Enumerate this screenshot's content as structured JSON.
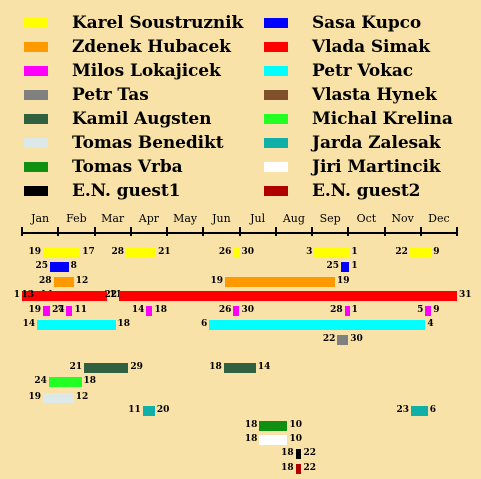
{
  "legend": [
    {
      "name": "Karel Soustruznik",
      "color": "#ffff00"
    },
    {
      "name": "Sasa Kupco",
      "color": "#0000ff"
    },
    {
      "name": "Zdenek Hubacek",
      "color": "#ff9900"
    },
    {
      "name": "Vlada Simak",
      "color": "#ff0000"
    },
    {
      "name": "Milos Lokajicek",
      "color": "#ff00ff"
    },
    {
      "name": "Petr Vokac",
      "color": "#00ffff"
    },
    {
      "name": "Petr Tas",
      "color": "#808080"
    },
    {
      "name": "Vlasta Hynek",
      "color": "#80502a"
    },
    {
      "name": "Kamil Augsten",
      "color": "#306040"
    },
    {
      "name": "Michal Krelina",
      "color": "#22ff22"
    },
    {
      "name": "Tomas Benedikt",
      "color": "#dde8e8"
    },
    {
      "name": "Jarda Zalesak",
      "color": "#10b0a8"
    },
    {
      "name": "Tomas Vrba",
      "color": "#109010"
    },
    {
      "name": "Jiri Martincik",
      "color": "#ffffff"
    },
    {
      "name": "E.N. guest1",
      "color": "#000000"
    },
    {
      "name": "E.N. guest2",
      "color": "#b00000"
    }
  ],
  "months": [
    "Jan",
    "Feb",
    "Mar",
    "Apr",
    "May",
    "Jun",
    "Jul",
    "Aug",
    "Sep",
    "Oct",
    "Nov",
    "Dec"
  ],
  "rows": [
    {
      "person": "Karel Soustruznik",
      "segments": [
        {
          "start": "19",
          "end": "17",
          "from": [
            0,
            19
          ],
          "to": [
            1,
            17
          ]
        },
        {
          "start": "28",
          "end": "21",
          "from": [
            2,
            28
          ],
          "to": [
            3,
            21
          ]
        },
        {
          "start": "26",
          "end": "30",
          "from": [
            5,
            26
          ],
          "to": [
            5,
            30
          ]
        },
        {
          "start": "3",
          "end": "1",
          "from": [
            8,
            3
          ],
          "to": [
            9,
            1
          ]
        },
        {
          "start": "22",
          "end": "9",
          "from": [
            10,
            22
          ],
          "to": [
            11,
            9
          ]
        }
      ]
    },
    {
      "person": "Sasa Kupco",
      "segments": [
        {
          "start": "25",
          "end": "8",
          "from": [
            0,
            25
          ],
          "to": [
            1,
            8
          ]
        },
        {
          "start": "25",
          "end": "1",
          "from": [
            8,
            25
          ],
          "to": [
            9,
            1
          ]
        }
      ]
    },
    {
      "person": "Zdenek Hubacek",
      "segments": [
        {
          "start": "28",
          "end": "12",
          "from": [
            0,
            28
          ],
          "to": [
            1,
            12
          ]
        },
        {
          "start": "19",
          "end": "19",
          "from": [
            5,
            19
          ],
          "to": [
            8,
            19
          ]
        }
      ]
    },
    {
      "person": "Vlada Simak",
      "segments": [
        {
          "start": "1",
          "end": "14",
          "from": [
            0,
            1
          ],
          "to": [
            0,
            14
          ]
        },
        {
          "start": "13",
          "end": "11",
          "from": [
            0,
            13
          ],
          "to": [
            2,
            11
          ]
        },
        {
          "start": "22",
          "end": "31",
          "from": [
            2,
            22
          ],
          "to": [
            11,
            31
          ]
        }
      ]
    },
    {
      "person": "Milos Lokajicek",
      "segments": [
        {
          "start": "19",
          "end": "24",
          "from": [
            0,
            19
          ],
          "to": [
            0,
            24
          ]
        },
        {
          "start": "7",
          "end": "11",
          "from": [
            1,
            7
          ],
          "to": [
            1,
            11
          ]
        },
        {
          "start": "14",
          "end": "18",
          "from": [
            3,
            14
          ],
          "to": [
            3,
            18
          ]
        },
        {
          "start": "26",
          "end": "30",
          "from": [
            5,
            26
          ],
          "to": [
            5,
            30
          ]
        },
        {
          "start": "28",
          "end": "1",
          "from": [
            8,
            28
          ],
          "to": [
            9,
            1
          ]
        },
        {
          "start": "5",
          "end": "9",
          "from": [
            11,
            5
          ],
          "to": [
            11,
            9
          ]
        }
      ]
    },
    {
      "person": "Petr Vokac",
      "segments": [
        {
          "start": "14",
          "end": "18",
          "from": [
            0,
            14
          ],
          "to": [
            2,
            18
          ]
        },
        {
          "start": "6",
          "end": "4",
          "from": [
            5,
            6
          ],
          "to": [
            11,
            4
          ]
        }
      ]
    },
    {
      "person": "Petr Tas",
      "segments": [
        {
          "start": "22",
          "end": "30",
          "from": [
            8,
            22
          ],
          "to": [
            8,
            30
          ]
        }
      ]
    },
    {
      "person": "Vlasta Hynek",
      "segments": []
    },
    {
      "person": "Kamil Augsten",
      "segments": [
        {
          "start": "21",
          "end": "29",
          "from": [
            1,
            21
          ],
          "to": [
            2,
            29
          ]
        },
        {
          "start": "18",
          "end": "14",
          "from": [
            5,
            18
          ],
          "to": [
            6,
            14
          ]
        }
      ]
    },
    {
      "person": "Michal Krelina",
      "segments": [
        {
          "start": "24",
          "end": "18",
          "from": [
            0,
            24
          ],
          "to": [
            1,
            18
          ]
        }
      ]
    },
    {
      "person": "Tomas Benedikt",
      "segments": [
        {
          "start": "19",
          "end": "12",
          "from": [
            0,
            19
          ],
          "to": [
            1,
            12
          ]
        }
      ]
    },
    {
      "person": "Jarda Zalesak",
      "segments": [
        {
          "start": "11",
          "end": "20",
          "from": [
            3,
            11
          ],
          "to": [
            3,
            20
          ]
        },
        {
          "start": "23",
          "end": "6",
          "from": [
            10,
            23
          ],
          "to": [
            11,
            6
          ]
        }
      ]
    },
    {
      "person": "Tomas Vrba",
      "segments": [
        {
          "start": "18",
          "end": "10",
          "from": [
            6,
            18
          ],
          "to": [
            7,
            10
          ]
        }
      ]
    },
    {
      "person": "Jiri Martincik",
      "segments": [
        {
          "start": "18",
          "end": "10",
          "from": [
            6,
            18
          ],
          "to": [
            7,
            10
          ]
        }
      ]
    },
    {
      "person": "E.N. guest1",
      "segments": [
        {
          "start": "18",
          "end": "22",
          "from": [
            7,
            18
          ],
          "to": [
            7,
            22
          ]
        }
      ]
    },
    {
      "person": "E.N. guest2",
      "segments": [
        {
          "start": "18",
          "end": "22",
          "from": [
            7,
            18
          ],
          "to": [
            7,
            22
          ]
        }
      ]
    }
  ]
}
